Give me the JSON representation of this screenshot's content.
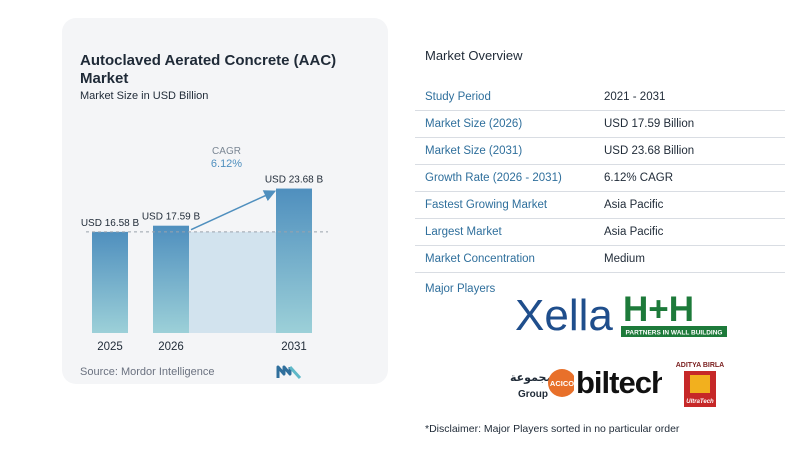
{
  "chart_data": {
    "type": "bar",
    "title": "Autoclaved Aerated Concrete (AAC) Market",
    "subtitle": "Market Size in USD Billion",
    "categories": [
      "2025",
      "2026",
      "2031"
    ],
    "values": [
      16.58,
      17.59,
      23.68
    ],
    "data_labels": [
      "USD 16.58 B",
      "USD 17.59 B",
      "USD 23.68 B"
    ],
    "cagr_label": "CAGR",
    "cagr_value": "6.12%",
    "colors": {
      "bar_top": "#4f8fbe",
      "bar_bottom": "#9cd0d8",
      "projection_fill": "#d2e3ee",
      "arrow": "#4f8fbe",
      "reference_line": "#9aa3ad"
    },
    "grid": false
  },
  "source": "Source:  Mordor Intelligence",
  "overview": {
    "title": "Market Overview",
    "rows": [
      {
        "label": "Study Period",
        "value": "2021 - 2031"
      },
      {
        "label": "Market Size (2026)",
        "value": "USD 17.59 Billion"
      },
      {
        "label": "Market Size (2031)",
        "value": "USD 23.68 Billion"
      },
      {
        "label": "Growth Rate (2026 - 2031)",
        "value": "6.12% CAGR"
      },
      {
        "label": "Fastest Growing Market",
        "value": "Asia Pacific"
      },
      {
        "label": "Largest Market",
        "value": "Asia Pacific"
      },
      {
        "label": "Market Concentration",
        "value": "Medium"
      }
    ]
  },
  "players": {
    "label": "Major Players",
    "xella": "Xella",
    "hh": "H+H",
    "hh_tagline": "PARTNERS IN WALL BUILDING",
    "acico_arabic": "المجموعة",
    "acico_group": "Group",
    "acico_name": "ACICO",
    "biltech": "biltech",
    "aditya": "ADITYA BIRLA",
    "ultratech": "UltraTech"
  },
  "disclaimer": "*Disclaimer: Major Players sorted in no particular order"
}
